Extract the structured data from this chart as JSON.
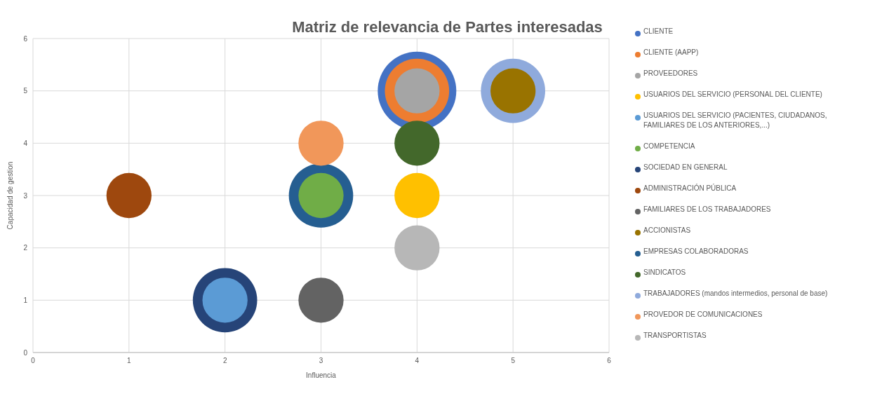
{
  "chart_data": {
    "type": "bubble",
    "title": "Matriz de relevancia de Partes interesadas",
    "xlabel": "Influencia",
    "ylabel": "Capacidad de gestion",
    "xlim": [
      0,
      6
    ],
    "xticks": [
      0,
      1,
      2,
      3,
      4,
      5,
      6
    ],
    "ylim": [
      0,
      6
    ],
    "yticks": [
      0,
      1,
      2,
      3,
      4,
      5,
      6
    ],
    "grid": true,
    "legend": "right",
    "series": [
      {
        "name": "CLIENTE",
        "color": "#4472c4",
        "x": [
          4
        ],
        "values": [
          5
        ],
        "sizes": [
          1
        ]
      },
      {
        "name": "CLIENTE (AAPP)",
        "color": "#ed7d31",
        "x": [
          4
        ],
        "values": [
          5
        ],
        "sizes": [
          0.67
        ]
      },
      {
        "name": "PROVEEDORES",
        "color": "#a5a5a5",
        "x": [
          4
        ],
        "values": [
          5
        ],
        "sizes": [
          0.33
        ]
      },
      {
        "name": "USUARIOS DEL SERVICIO (PERSONAL DEL CLIENTE)",
        "color": "#ffc000",
        "x": [
          4
        ],
        "values": [
          3
        ],
        "sizes": [
          0.33
        ]
      },
      {
        "name": "USUARIOS DEL SERVICIO (PACIENTES, CIUDADANOS, FAMILIARES DE LOS ANTERIORES,...)",
        "color": "#5b9bd5",
        "x": [
          2
        ],
        "values": [
          1
        ],
        "sizes": [
          0.33
        ]
      },
      {
        "name": "COMPETENCIA",
        "color": "#70ad47",
        "x": [
          3
        ],
        "values": [
          3
        ],
        "sizes": [
          0.33
        ]
      },
      {
        "name": "SOCIEDAD EN GENERAL",
        "color": "#264478",
        "x": [
          2
        ],
        "values": [
          1
        ],
        "sizes": [
          0.67
        ]
      },
      {
        "name": "ADMINISTRACIÓN PÚBLICA",
        "color": "#9e480e",
        "x": [
          1
        ],
        "values": [
          3
        ],
        "sizes": [
          0.33
        ]
      },
      {
        "name": "FAMILIARES DE LOS TRABAJADORES",
        "color": "#636363",
        "x": [
          3
        ],
        "values": [
          1
        ],
        "sizes": [
          0.33
        ]
      },
      {
        "name": "ACCIONISTAS",
        "color": "#997300",
        "x": [
          5
        ],
        "values": [
          5
        ],
        "sizes": [
          0.33
        ]
      },
      {
        "name": "EMPRESAS COLABORADORAS",
        "color": "#255e91",
        "x": [
          3
        ],
        "values": [
          3
        ],
        "sizes": [
          0.67
        ]
      },
      {
        "name": "SINDICATOS",
        "color": "#43682b",
        "x": [
          4
        ],
        "values": [
          4
        ],
        "sizes": [
          0.33
        ]
      },
      {
        "name": "TRABAJADORES (mandos intermedios, personal de base)",
        "color": "#8faadc",
        "x": [
          5
        ],
        "values": [
          5
        ],
        "sizes": [
          0.67
        ]
      },
      {
        "name": "PROVEDOR DE COMUNICACIONES",
        "color": "#f1975a",
        "x": [
          3
        ],
        "values": [
          4
        ],
        "sizes": [
          0.33
        ]
      },
      {
        "name": "TRANSPORTISTAS",
        "color": "#b7b7b7",
        "x": [
          4
        ],
        "values": [
          2
        ],
        "sizes": [
          0.33
        ]
      }
    ]
  }
}
